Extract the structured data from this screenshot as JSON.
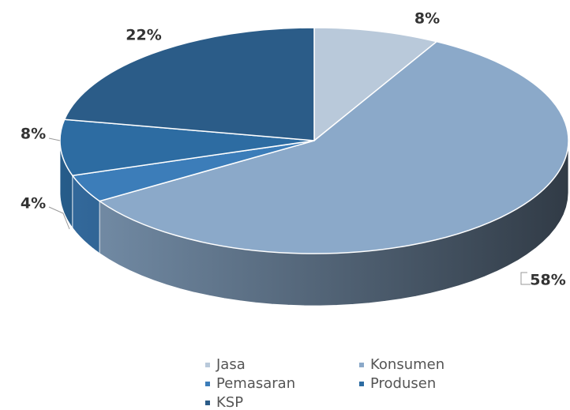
{
  "chart_data": {
    "type": "pie3d",
    "categories": [
      "Jasa",
      "Konsumen",
      "Pemasaran",
      "Produsen",
      "KSP"
    ],
    "values": [
      8,
      58,
      4,
      8,
      22
    ],
    "value_labels": [
      "8%",
      "58%",
      "4%",
      "8%",
      "22%"
    ],
    "colors": [
      "#b9c9da",
      "#8ba9c9",
      "#3c7db9",
      "#2d6ca2",
      "#2b5c88"
    ],
    "legend": "bottom"
  }
}
